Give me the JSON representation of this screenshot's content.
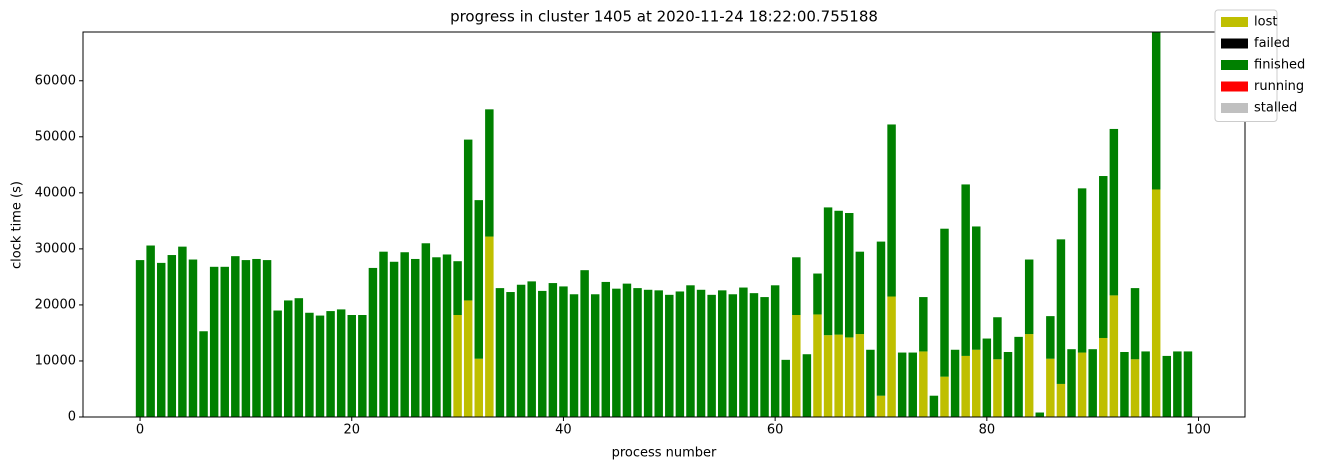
{
  "chart_data": {
    "type": "stacked_bar",
    "title": "progress in cluster 1405 at 2020-11-24 18:22:00.755188",
    "x_label": "process number",
    "y_label": "clock time (s)",
    "x": [
      0,
      1,
      2,
      3,
      4,
      5,
      6,
      7,
      8,
      9,
      10,
      11,
      12,
      13,
      14,
      15,
      16,
      17,
      18,
      19,
      20,
      21,
      22,
      23,
      24,
      25,
      26,
      27,
      28,
      29,
      30,
      31,
      32,
      33,
      34,
      35,
      36,
      37,
      38,
      39,
      40,
      41,
      42,
      43,
      44,
      45,
      46,
      47,
      48,
      49,
      50,
      51,
      52,
      53,
      54,
      55,
      56,
      57,
      58,
      59,
      60,
      61,
      62,
      63,
      64,
      65,
      66,
      67,
      68,
      69,
      70,
      71,
      72,
      73,
      74,
      75,
      76,
      77,
      78,
      79,
      80,
      81,
      82,
      83,
      84,
      85,
      86,
      87,
      88,
      89,
      90,
      91,
      92,
      93,
      94,
      95,
      96,
      97,
      98,
      99
    ],
    "bar_width": 0.8,
    "xlim": [
      -5.39,
      104.39
    ],
    "xticks": [
      0,
      20,
      40,
      60,
      80,
      100
    ],
    "ylim": [
      0,
      68700
    ],
    "yticks": [
      0,
      10000,
      20000,
      30000,
      40000,
      50000,
      60000
    ],
    "legend": "upper right",
    "series": [
      {
        "name": "lost",
        "color": "#bfbf00",
        "values": [
          0,
          0,
          0,
          0,
          0,
          0,
          0,
          0,
          0,
          0,
          0,
          0,
          0,
          0,
          0,
          0,
          0,
          0,
          0,
          0,
          0,
          0,
          0,
          0,
          0,
          0,
          0,
          0,
          0,
          0,
          18200,
          20800,
          10400,
          32200,
          0,
          0,
          0,
          0,
          0,
          0,
          0,
          0,
          0,
          0,
          0,
          0,
          0,
          0,
          0,
          0,
          0,
          0,
          0,
          0,
          0,
          0,
          0,
          0,
          0,
          0,
          0,
          0,
          18200,
          0,
          18300,
          14600,
          14700,
          14200,
          14800,
          0,
          3800,
          21500,
          0,
          0,
          11700,
          0,
          7200,
          0,
          10900,
          12000,
          0,
          10300,
          0,
          0,
          14800,
          0,
          10400,
          5900,
          0,
          11500,
          0,
          14100,
          21700,
          0,
          10300,
          0,
          40600,
          0,
          0,
          0
        ]
      },
      {
        "name": "failed",
        "color": "#000000",
        "values": [
          0,
          0,
          0,
          0,
          0,
          0,
          0,
          0,
          0,
          0,
          0,
          0,
          0,
          0,
          0,
          0,
          0,
          0,
          0,
          0,
          0,
          0,
          0,
          0,
          0,
          0,
          0,
          0,
          0,
          0,
          0,
          0,
          0,
          0,
          0,
          0,
          0,
          0,
          0,
          0,
          0,
          0,
          0,
          0,
          0,
          0,
          0,
          0,
          0,
          0,
          0,
          0,
          0,
          0,
          0,
          0,
          0,
          0,
          0,
          0,
          0,
          0,
          0,
          0,
          0,
          0,
          0,
          0,
          0,
          0,
          0,
          0,
          0,
          0,
          0,
          0,
          0,
          0,
          0,
          0,
          0,
          0,
          0,
          0,
          0,
          0,
          0,
          0,
          0,
          0,
          0,
          0,
          0,
          0,
          0,
          0,
          0,
          0,
          0,
          0
        ]
      },
      {
        "name": "finished",
        "color": "#008000",
        "values": [
          28000,
          30600,
          27500,
          28900,
          30400,
          28100,
          15300,
          26800,
          26800,
          28700,
          28000,
          28200,
          28000,
          19000,
          20800,
          21200,
          18600,
          18100,
          18900,
          19200,
          18200,
          18200,
          26600,
          29500,
          27700,
          29400,
          28200,
          31000,
          28500,
          29000,
          9600,
          28700,
          28300,
          22700,
          23000,
          22300,
          23600,
          24200,
          22500,
          23900,
          23300,
          21900,
          26200,
          21900,
          24100,
          22900,
          23800,
          23000,
          22700,
          22600,
          21800,
          22400,
          23500,
          22700,
          21800,
          22600,
          21900,
          23100,
          22100,
          21400,
          23500,
          10200,
          10300,
          11200,
          7300,
          22800,
          22100,
          22200,
          14700,
          12000,
          27500,
          30700,
          11500,
          11500,
          9700,
          3800,
          26400,
          12000,
          30600,
          22000,
          14000,
          7500,
          11600,
          14300,
          13300,
          800,
          7600,
          25800,
          12100,
          29300,
          12100,
          28900,
          29700,
          11600,
          12700,
          11700,
          28100,
          10900,
          11700,
          11700
        ]
      },
      {
        "name": "running",
        "color": "#ff0000",
        "values": [
          0,
          0,
          0,
          0,
          0,
          0,
          0,
          0,
          0,
          0,
          0,
          0,
          0,
          0,
          0,
          0,
          0,
          0,
          0,
          0,
          0,
          0,
          0,
          0,
          0,
          0,
          0,
          0,
          0,
          0,
          0,
          0,
          0,
          0,
          0,
          0,
          0,
          0,
          0,
          0,
          0,
          0,
          0,
          0,
          0,
          0,
          0,
          0,
          0,
          0,
          0,
          0,
          0,
          0,
          0,
          0,
          0,
          0,
          0,
          0,
          0,
          0,
          0,
          0,
          0,
          0,
          0,
          0,
          0,
          0,
          0,
          0,
          0,
          0,
          0,
          0,
          0,
          0,
          0,
          0,
          0,
          0,
          0,
          0,
          0,
          0,
          0,
          0,
          0,
          0,
          0,
          0,
          0,
          0,
          0,
          0,
          0,
          0,
          0,
          0
        ]
      },
      {
        "name": "stalled",
        "color": "#c0c0c0",
        "values": [
          0,
          0,
          0,
          0,
          0,
          0,
          0,
          0,
          0,
          0,
          0,
          0,
          0,
          0,
          0,
          0,
          0,
          0,
          0,
          0,
          0,
          0,
          0,
          0,
          0,
          0,
          0,
          0,
          0,
          0,
          0,
          0,
          0,
          0,
          0,
          0,
          0,
          0,
          0,
          0,
          0,
          0,
          0,
          0,
          0,
          0,
          0,
          0,
          0,
          0,
          0,
          0,
          0,
          0,
          0,
          0,
          0,
          0,
          0,
          0,
          0,
          0,
          0,
          0,
          0,
          0,
          0,
          0,
          0,
          0,
          0,
          0,
          0,
          0,
          0,
          0,
          0,
          0,
          0,
          0,
          0,
          0,
          0,
          0,
          0,
          0,
          0,
          0,
          0,
          0,
          0,
          0,
          0,
          0,
          0,
          0,
          0,
          0,
          0,
          0
        ]
      }
    ]
  }
}
